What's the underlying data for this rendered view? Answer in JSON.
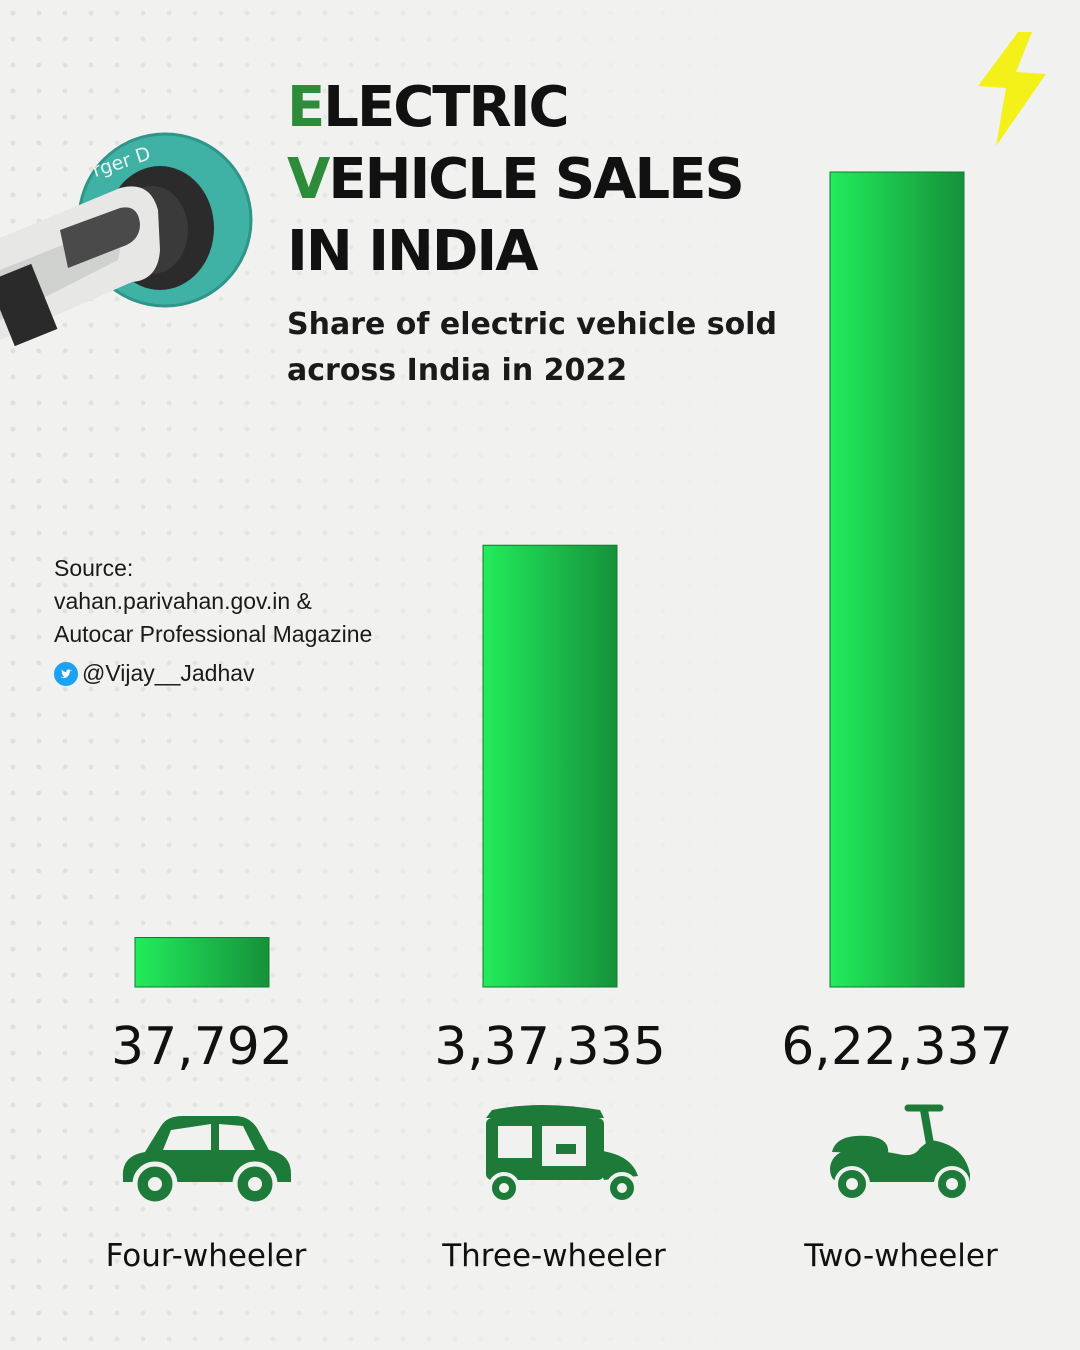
{
  "title": {
    "line1_initial": "E",
    "line1_rest": "LECTRIC",
    "line2_initial": "V",
    "line2_rest": "EHICLE SALES",
    "line3": "IN INDIA"
  },
  "subtitle": "Share of electric vehicle sold across India in 2022",
  "source": {
    "label": "Source:",
    "line1": "vahan.parivahan.gov.in &",
    "line2": "Autocar Professional Magazine",
    "handle": "@Vijay__Jadhav"
  },
  "charger_label": "rger D",
  "colors": {
    "bar_light": "#22ec5c",
    "bar_dark": "#15913a",
    "accent": "#2e8b3a",
    "icon": "#1d7a38",
    "bolt": "#f3f01a",
    "twitter": "#1da1f2"
  },
  "icons": [
    "car-icon",
    "auto-rickshaw-icon",
    "scooter-icon",
    "lightning-bolt-icon",
    "twitter-icon"
  ],
  "chart_data": {
    "type": "bar",
    "categories": [
      "Four-wheeler",
      "Three-wheeler",
      "Two-wheeler"
    ],
    "values": [
      37792,
      337335,
      622337
    ],
    "value_labels": [
      "37,792",
      "3,37,335",
      "6,22,337"
    ],
    "title": "",
    "xlabel": "",
    "ylabel": "",
    "ylim": [
      0,
      622337
    ],
    "grid": false,
    "legend": "none"
  }
}
